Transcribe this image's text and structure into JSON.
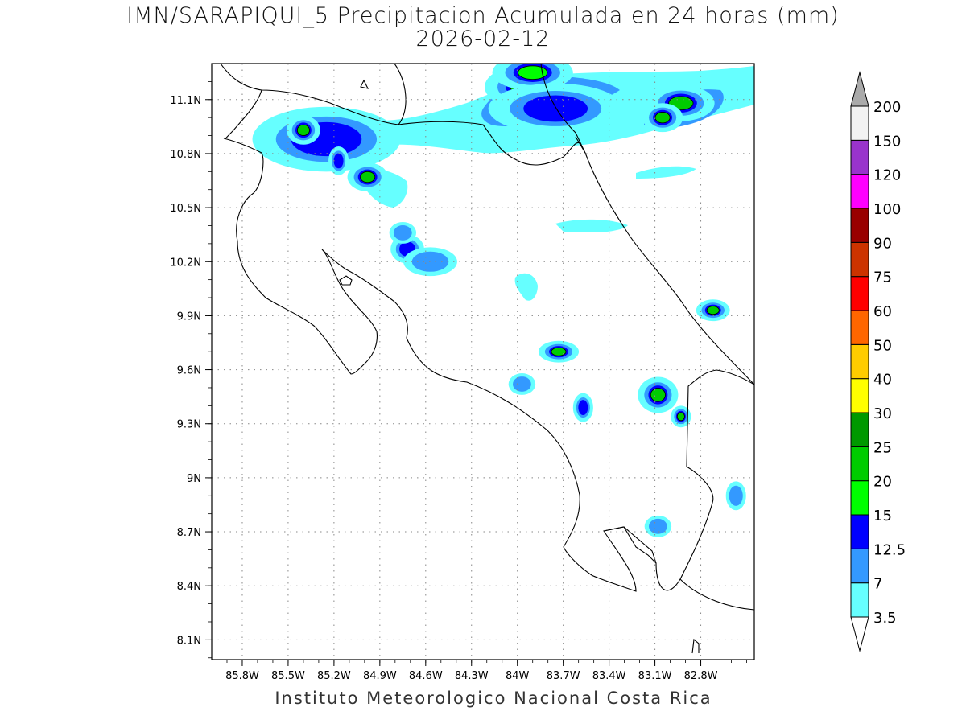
{
  "title": {
    "line1": "IMN/SARAPIQUI_5 Precipitacion Acumulada en 24 horas (mm)",
    "line2": "2026-02-12"
  },
  "footer": "Instituto Meteorologico Nacional Costa Rica",
  "axes": {
    "lon_ticks": [
      -85.8,
      -85.5,
      -85.2,
      -84.9,
      -84.6,
      -84.3,
      -84.0,
      -83.7,
      -83.4,
      -83.1,
      -82.8
    ],
    "lon_labels": [
      "85.8W",
      "85.5W",
      "85.2W",
      "84.9W",
      "84.6W",
      "84.3W",
      "84W",
      "83.7W",
      "83.4W",
      "83.1W",
      "82.8W"
    ],
    "lat_ticks": [
      11.1,
      10.8,
      10.5,
      10.2,
      9.9,
      9.6,
      9.3,
      9.0,
      8.7,
      8.4,
      8.1
    ],
    "lat_labels": [
      "11.1N",
      "10.8N",
      "10.5N",
      "10.2N",
      "9.9N",
      "9.6N",
      "9.3N",
      "9N",
      "8.7N",
      "8.4N",
      "8.1N"
    ],
    "lon_range": [
      -86.0,
      -82.45
    ],
    "lat_range": [
      7.99,
      11.3
    ]
  },
  "colorbar": {
    "levels": [
      "3.5",
      "7",
      "12.5",
      "15",
      "20",
      "25",
      "30",
      "40",
      "50",
      "60",
      "75",
      "90",
      "100",
      "120",
      "150",
      "200"
    ],
    "colors": [
      "#66ffff",
      "#3399ff",
      "#0000ff",
      "#00ff00",
      "#00cc00",
      "#009900",
      "#ffff00",
      "#ffcc00",
      "#ff6600",
      "#ff0000",
      "#cc3300",
      "#990000",
      "#ff00ff",
      "#9933cc",
      "#f2f2f2",
      "#aaaaaa"
    ]
  },
  "precip_cells": [
    {
      "lon": -85.25,
      "lat": 10.88,
      "rx": 0.22,
      "ry": 0.09,
      "level": 12.5
    },
    {
      "lon": -85.4,
      "lat": 10.93,
      "rx": 0.05,
      "ry": 0.04,
      "level": 20
    },
    {
      "lon": -85.17,
      "lat": 10.76,
      "rx": 0.03,
      "ry": 0.04,
      "level": 12.5
    },
    {
      "lon": -84.98,
      "lat": 10.67,
      "rx": 0.06,
      "ry": 0.04,
      "level": 20
    },
    {
      "lon": -84.72,
      "lat": 10.27,
      "rx": 0.05,
      "ry": 0.04,
      "level": 12.5
    },
    {
      "lon": -84.75,
      "lat": 10.36,
      "rx": 0.04,
      "ry": 0.03,
      "level": 7
    },
    {
      "lon": -84.57,
      "lat": 10.2,
      "rx": 0.08,
      "ry": 0.04,
      "level": 7
    },
    {
      "lon": -83.95,
      "lat": 11.17,
      "rx": 0.12,
      "ry": 0.06,
      "level": 20
    },
    {
      "lon": -83.9,
      "lat": 11.25,
      "rx": 0.12,
      "ry": 0.05,
      "level": 15
    },
    {
      "lon": -83.75,
      "lat": 11.05,
      "rx": 0.2,
      "ry": 0.07,
      "level": 12.5
    },
    {
      "lon": -82.93,
      "lat": 11.08,
      "rx": 0.1,
      "ry": 0.05,
      "level": 20
    },
    {
      "lon": -83.05,
      "lat": 11.0,
      "rx": 0.06,
      "ry": 0.04,
      "level": 20
    },
    {
      "lon": -82.72,
      "lat": 9.93,
      "rx": 0.05,
      "ry": 0.03,
      "level": 20
    },
    {
      "lon": -83.73,
      "lat": 9.7,
      "rx": 0.06,
      "ry": 0.03,
      "level": 20
    },
    {
      "lon": -83.08,
      "lat": 9.46,
      "rx": 0.06,
      "ry": 0.05,
      "level": 20
    },
    {
      "lon": -82.93,
      "lat": 9.34,
      "rx": 0.03,
      "ry": 0.03,
      "level": 20
    },
    {
      "lon": -83.57,
      "lat": 9.39,
      "rx": 0.03,
      "ry": 0.04,
      "level": 12.5
    },
    {
      "lon": -83.97,
      "lat": 9.52,
      "rx": 0.04,
      "ry": 0.03,
      "level": 7
    },
    {
      "lon": -82.57,
      "lat": 8.9,
      "rx": 0.03,
      "ry": 0.04,
      "level": 7
    },
    {
      "lon": -83.08,
      "lat": 8.73,
      "rx": 0.04,
      "ry": 0.03,
      "level": 7
    }
  ]
}
